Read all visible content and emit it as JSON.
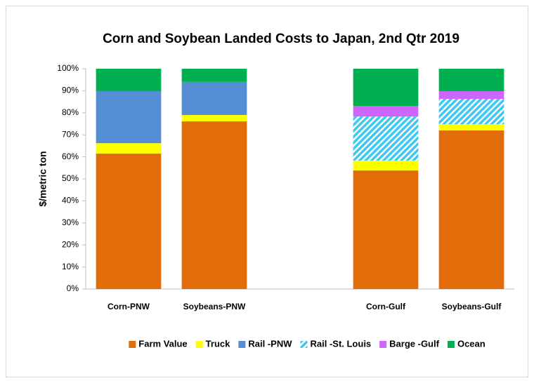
{
  "chart_data": {
    "type": "stacked_bar",
    "title": "Corn and Soybean Landed Costs to Japan, 2nd Qtr 2019",
    "y_label": "$/metric ton",
    "categories": [
      "Corn-PNW",
      "Soybeans-PNW",
      null,
      "Corn-Gulf",
      "Soybeans-Gulf"
    ],
    "series": [
      {
        "name": "Farm Value",
        "color": "#e36c0a",
        "values": [
          61.5,
          76.1,
          null,
          53.8,
          72.0
        ]
      },
      {
        "name": "Truck",
        "color": "#ffff00",
        "values": [
          4.7,
          2.9,
          null,
          4.5,
          2.8
        ]
      },
      {
        "name": "Rail -PNW",
        "color": "#558ed5",
        "values": [
          23.6,
          15.0,
          null,
          null,
          null
        ]
      },
      {
        "name": "Rail -St. Louis",
        "color": "#3cc8f0",
        "pattern": "hatch",
        "values": [
          null,
          null,
          null,
          20.0,
          11.5
        ]
      },
      {
        "name": "Barge -Gulf",
        "color": "#cc66ff",
        "values": [
          null,
          null,
          null,
          4.8,
          3.5
        ]
      },
      {
        "name": "Ocean",
        "color": "#00b050",
        "values": [
          10.2,
          6.0,
          null,
          16.9,
          10.2
        ]
      }
    ],
    "ylim": [
      0,
      100
    ],
    "yticks": [
      {
        "value": 0,
        "label": "0%"
      },
      {
        "value": 10,
        "label": "10%"
      },
      {
        "value": 20,
        "label": "20%"
      },
      {
        "value": 30,
        "label": "30%"
      },
      {
        "value": 40,
        "label": "40%"
      },
      {
        "value": 50,
        "label": "50%"
      },
      {
        "value": 60,
        "label": "60%"
      },
      {
        "value": 70,
        "label": "70%"
      },
      {
        "value": 80,
        "label": "80%"
      },
      {
        "value": 90,
        "label": "90%"
      },
      {
        "value": 100,
        "label": "100%"
      }
    ],
    "grid": false,
    "legend": "bottom"
  }
}
